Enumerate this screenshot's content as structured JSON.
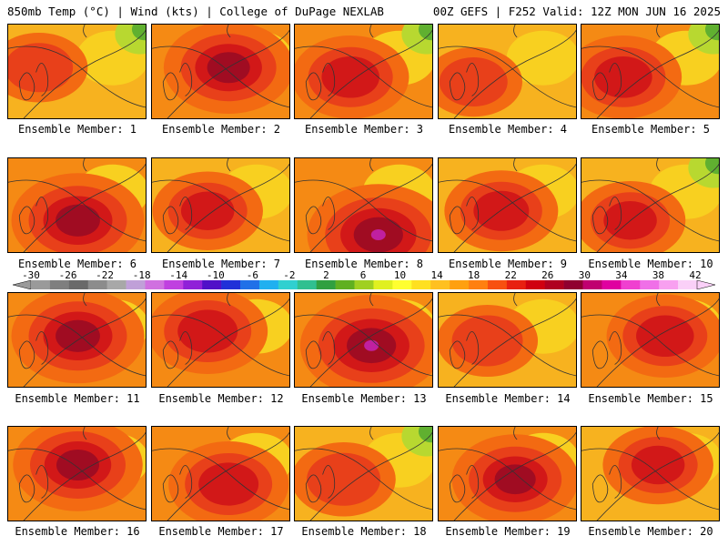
{
  "header": {
    "left": "850mb Temp (°C) | Wind (kts) | College of DuPage NEXLAB",
    "right": "00Z GEFS | F252 Valid: 12Z MON JUN 16 2025"
  },
  "members": [
    {
      "label": "Ensemble Member: 1",
      "intensity": 0.25,
      "hot": [
        0.22,
        0.45
      ],
      "green": true
    },
    {
      "label": "Ensemble Member: 2",
      "intensity": 0.75,
      "hot": [
        0.55,
        0.45
      ],
      "green": false
    },
    {
      "label": "Ensemble Member: 3",
      "intensity": 0.55,
      "hot": [
        0.4,
        0.55
      ],
      "green": true
    },
    {
      "label": "Ensemble Member: 4",
      "intensity": 0.25,
      "hot": [
        0.25,
        0.6
      ],
      "green": false
    },
    {
      "label": "Ensemble Member: 5",
      "intensity": 0.55,
      "hot": [
        0.3,
        0.55
      ],
      "green": true
    },
    {
      "label": "Ensemble Member: 6",
      "intensity": 0.8,
      "hot": [
        0.5,
        0.65
      ],
      "green": false
    },
    {
      "label": "Ensemble Member: 7",
      "intensity": 0.45,
      "hot": [
        0.4,
        0.55
      ],
      "green": false
    },
    {
      "label": "Ensemble Member: 8",
      "intensity": 0.95,
      "hot": [
        0.6,
        0.8
      ],
      "green": false
    },
    {
      "label": "Ensemble Member: 9",
      "intensity": 0.5,
      "hot": [
        0.45,
        0.55
      ],
      "green": false
    },
    {
      "label": "Ensemble Member: 10",
      "intensity": 0.45,
      "hot": [
        0.35,
        0.65
      ],
      "green": true
    },
    {
      "label": "Ensemble Member: 11",
      "intensity": 0.8,
      "hot": [
        0.5,
        0.45
      ],
      "green": false
    },
    {
      "label": "Ensemble Member: 12",
      "intensity": 0.6,
      "hot": [
        0.4,
        0.4
      ],
      "green": false
    },
    {
      "label": "Ensemble Member: 13",
      "intensity": 0.95,
      "hot": [
        0.55,
        0.55
      ],
      "green": false
    },
    {
      "label": "Ensemble Member: 14",
      "intensity": 0.3,
      "hot": [
        0.35,
        0.5
      ],
      "green": false
    },
    {
      "label": "Ensemble Member: 15",
      "intensity": 0.55,
      "hot": [
        0.6,
        0.45
      ],
      "green": false
    },
    {
      "label": "Ensemble Member: 16",
      "intensity": 0.75,
      "hot": [
        0.5,
        0.4
      ],
      "green": false
    },
    {
      "label": "Ensemble Member: 17",
      "intensity": 0.6,
      "hot": [
        0.55,
        0.6
      ],
      "green": false
    },
    {
      "label": "Ensemble Member: 18",
      "intensity": 0.35,
      "hot": [
        0.35,
        0.55
      ],
      "green": true
    },
    {
      "label": "Ensemble Member: 19",
      "intensity": 0.7,
      "hot": [
        0.55,
        0.55
      ],
      "green": false
    },
    {
      "label": "Ensemble Member: 20",
      "intensity": 0.45,
      "hot": [
        0.55,
        0.4
      ],
      "green": false
    }
  ],
  "colorbar": {
    "ticks": [
      "-30",
      "-26",
      "-22",
      "-18",
      "-14",
      "-10",
      "-6",
      "-2",
      "2",
      "6",
      "10",
      "14",
      "18",
      "22",
      "26",
      "30",
      "34",
      "38",
      "42"
    ],
    "colors": [
      "#9a9a9a",
      "#7f7f7f",
      "#6a6a6a",
      "#8c8c8c",
      "#a8a8a8",
      "#c0a0d8",
      "#d070e0",
      "#c040e0",
      "#9020d8",
      "#5010c8",
      "#2030d8",
      "#2070e8",
      "#20b0f0",
      "#30d0d0",
      "#30c090",
      "#30a040",
      "#60b020",
      "#a0d020",
      "#e0f020",
      "#ffff30",
      "#ffe020",
      "#ffc020",
      "#ffa010",
      "#ff8010",
      "#f85010",
      "#e82010",
      "#d00010",
      "#b00020",
      "#900030",
      "#c00070",
      "#e000a0",
      "#f040d0",
      "#f070e8",
      "#f8a0f0",
      "#fad0f8"
    ]
  }
}
